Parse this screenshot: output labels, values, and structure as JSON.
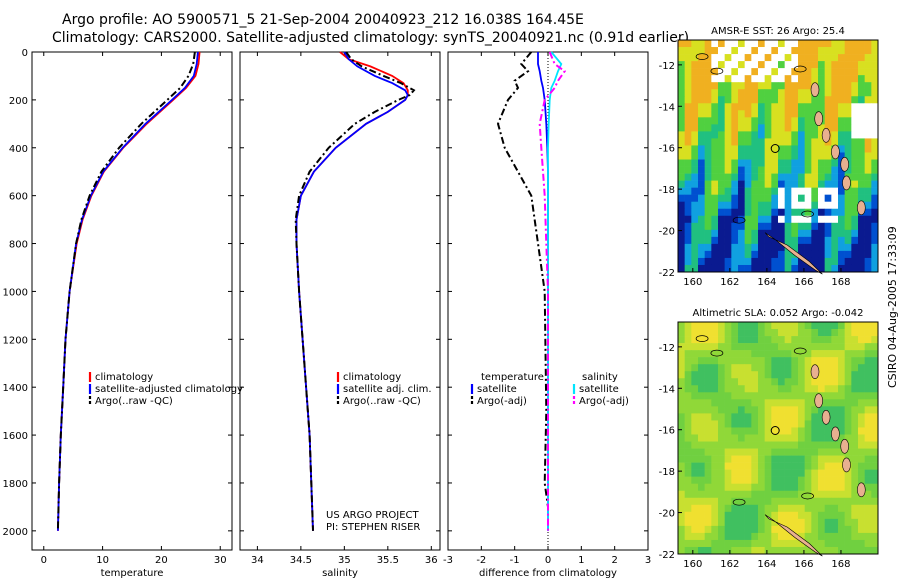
{
  "header": {
    "line1": "Argo profile: AO 5900571_5 21-Sep-2004 20040923_212 16.038S 164.45E",
    "line2": "Climatology: CARS2000. Satellite-adjusted climatology: synTS_20040921.nc (0.91d earlier)"
  },
  "credit": "CSIRO 04-Aug-2005 17:33:09",
  "colors": {
    "clim": "#ff0000",
    "sat": "#0000ff",
    "argo": "#000000",
    "sal_sat": "#00e5ff",
    "sal_argo": "#ff00ff",
    "land": "#e8b090"
  },
  "chart_data": [
    {
      "type": "line",
      "name": "temperature",
      "xlabel": "temperature",
      "xlim": [
        -2,
        32
      ],
      "xticks": [
        0,
        10,
        20,
        30
      ],
      "ylim": [
        0,
        2080
      ],
      "yticks": [
        0,
        200,
        400,
        600,
        800,
        1000,
        1200,
        1400,
        1600,
        1800,
        2000
      ],
      "depth": [
        0,
        50,
        100,
        150,
        200,
        300,
        400,
        500,
        600,
        700,
        800,
        1000,
        1200,
        1400,
        1600,
        1800,
        2000
      ],
      "series": [
        {
          "name": "climatology",
          "color": "#ff0000",
          "dash": "",
          "values": [
            26.5,
            26.3,
            25.8,
            24.2,
            22.0,
            17.5,
            13.5,
            10.2,
            8.1,
            6.6,
            5.6,
            4.4,
            3.7,
            3.3,
            2.9,
            2.6,
            2.4
          ]
        },
        {
          "name": "satellite-adjusted climatology",
          "color": "#0000ff",
          "dash": "",
          "values": [
            26.2,
            26.0,
            25.5,
            24.0,
            21.8,
            17.3,
            13.4,
            10.1,
            8.0,
            6.5,
            5.5,
            4.4,
            3.7,
            3.3,
            2.9,
            2.6,
            2.4
          ]
        },
        {
          "name": "Argo(..raw -QC)",
          "color": "#000000",
          "dash": "7,3,2,3",
          "values": [
            25.7,
            25.4,
            24.6,
            23.2,
            21.0,
            16.6,
            12.8,
            9.8,
            7.8,
            6.4,
            5.5,
            4.4,
            3.7,
            3.3,
            2.9,
            2.6,
            2.4
          ]
        }
      ],
      "legend": [
        "climatology",
        "satellite-adjusted climatology",
        "Argo(..raw -QC)"
      ]
    },
    {
      "type": "line",
      "name": "salinity",
      "xlabel": "salinity",
      "xlim": [
        33.8,
        36.1
      ],
      "xticks": [
        34,
        34.5,
        35,
        35.5,
        36
      ],
      "ylim": [
        0,
        2080
      ],
      "yticks": [
        0,
        200,
        400,
        600,
        800,
        1000,
        1200,
        1400,
        1600,
        1800,
        2000
      ],
      "depth": [
        0,
        30,
        60,
        100,
        130,
        160,
        180,
        200,
        250,
        300,
        400,
        500,
        600,
        700,
        800,
        1000,
        1200,
        1400,
        1600,
        1800,
        2000
      ],
      "series": [
        {
          "name": "climatology",
          "color": "#ff0000",
          "dash": "",
          "values": [
            34.95,
            35.05,
            35.3,
            35.55,
            35.68,
            35.73,
            35.73,
            35.7,
            35.5,
            35.25,
            34.9,
            34.65,
            34.5,
            34.45,
            34.45,
            34.48,
            34.52,
            34.56,
            34.6,
            34.62,
            34.64
          ]
        },
        {
          "name": "satellite adj. clim.",
          "color": "#0000ff",
          "dash": "",
          "values": [
            35.0,
            35.05,
            35.15,
            35.35,
            35.55,
            35.7,
            35.73,
            35.7,
            35.5,
            35.25,
            34.9,
            34.65,
            34.5,
            34.45,
            34.45,
            34.48,
            34.52,
            34.56,
            34.6,
            34.62,
            34.64
          ]
        },
        {
          "name": "Argo(..raw -QC)",
          "color": "#000000",
          "dash": "7,3,2,3",
          "values": [
            35.02,
            35.08,
            35.2,
            35.45,
            35.65,
            35.8,
            35.75,
            35.62,
            35.35,
            35.12,
            34.82,
            34.6,
            34.48,
            34.44,
            34.45,
            34.48,
            34.52,
            34.56,
            34.6,
            34.62,
            34.64
          ]
        }
      ],
      "legend": [
        "climatology",
        "satellite adj. clim.",
        "Argo(..raw -QC)"
      ],
      "annotation": [
        "US ARGO PROJECT",
        "PI: STEPHEN RISER"
      ]
    },
    {
      "type": "line",
      "name": "difference",
      "xlabel": "difference from climatology",
      "xlim": [
        -3,
        3
      ],
      "xticks": [
        -3,
        -2,
        -1,
        0,
        1,
        2,
        3
      ],
      "ylim": [
        0,
        2080
      ],
      "yticks": [
        0,
        200,
        400,
        600,
        800,
        1000,
        1200,
        1400,
        1600,
        1800,
        2000
      ],
      "depth": [
        0,
        50,
        80,
        120,
        150,
        200,
        300,
        400,
        500,
        600,
        800,
        1000,
        1500,
        1800,
        1900,
        2000
      ],
      "series": [
        {
          "name": "temperature satellite",
          "color": "#0000ff",
          "dash": "",
          "values": [
            -0.3,
            -0.3,
            -0.25,
            -0.2,
            -0.15,
            -0.1,
            -0.05,
            -0.02,
            0,
            0,
            0,
            0,
            0,
            0,
            0,
            0
          ]
        },
        {
          "name": "temperature Argo(-adj)",
          "color": "#000000",
          "dash": "7,3,2,3",
          "values": [
            -0.5,
            -0.8,
            -0.6,
            -1.0,
            -0.9,
            -1.2,
            -1.5,
            -1.3,
            -0.9,
            -0.5,
            -0.3,
            -0.1,
            -0.05,
            -0.1,
            0.0,
            0.0
          ]
        },
        {
          "name": "salinity satellite",
          "color": "#00e5ff",
          "dash": "",
          "values": [
            0.1,
            0.4,
            0.3,
            0.2,
            0.1,
            0.05,
            0.02,
            0,
            0,
            0,
            0,
            0,
            0,
            0,
            0,
            0
          ]
        },
        {
          "name": "salinity Argo(-adj)",
          "color": "#ff00ff",
          "dash": "7,3,2,3",
          "values": [
            0.05,
            0.2,
            0.5,
            0.3,
            0.2,
            -0.1,
            -0.25,
            -0.2,
            -0.15,
            -0.1,
            -0.05,
            0,
            0,
            0,
            0,
            0
          ]
        }
      ],
      "legend_left_title": "temperature",
      "legend_right_title": "salinity",
      "legend_left": [
        "satellite",
        "Argo(-adj)"
      ],
      "legend_right": [
        "satellite",
        "Argo(-adj)"
      ]
    },
    {
      "type": "heatmap",
      "name": "sst-map",
      "title": "AMSR-E SST: 26 Argo: 25.4",
      "xticks": [
        160,
        162,
        164,
        166,
        168
      ],
      "yticks": [
        -12,
        -14,
        -16,
        -18,
        -20,
        -22
      ],
      "profile_location": [
        164.45,
        -16.038
      ]
    },
    {
      "type": "heatmap",
      "name": "sla-map",
      "title": "Altimetric SLA: 0.052 Argo: -0.042",
      "xticks": [
        160,
        162,
        164,
        166,
        168
      ],
      "yticks": [
        -12,
        -14,
        -16,
        -18,
        -20,
        -22
      ],
      "profile_location": [
        164.45,
        -16.038
      ]
    }
  ]
}
